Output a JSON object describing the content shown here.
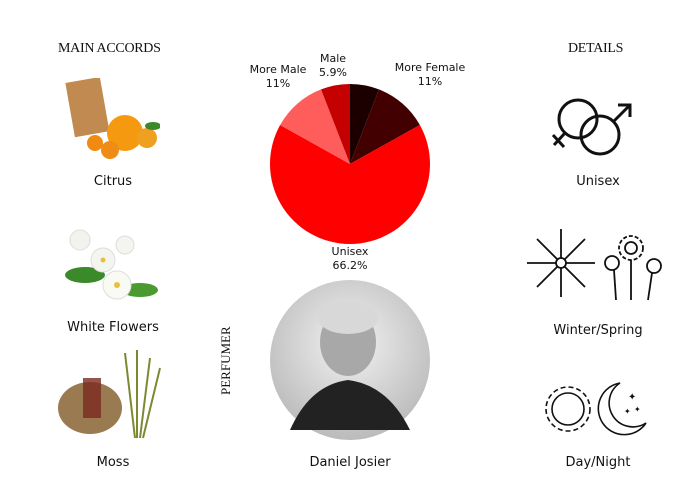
{
  "headers": {
    "accords": "MAIN ACCORDS",
    "details": "DETAILS",
    "perfumer_label": "PERFUMER"
  },
  "accords": [
    {
      "label": "Citrus",
      "icon": "citrus-fruits-image"
    },
    {
      "label": "White Flowers",
      "icon": "white-flowers-image"
    },
    {
      "label": "Moss",
      "icon": "moss-image"
    }
  ],
  "details": [
    {
      "label": "Unisex",
      "icon": "gender-symbols-icon"
    },
    {
      "label": "Winter/Spring",
      "icon": "snowflake-flowers-icon"
    },
    {
      "label": "Day/Night",
      "icon": "sun-moon-icon"
    }
  ],
  "perfumer": {
    "name": "Daniel Josier"
  },
  "chart_data": {
    "type": "pie",
    "slices": [
      {
        "label": "",
        "value": 5.9,
        "color": "#1c0000"
      },
      {
        "label": "More Female",
        "value": 11,
        "value_label": "11%",
        "color": "#420000"
      },
      {
        "label": "Unisex",
        "value": 66.2,
        "value_label": "66.2%",
        "color": "#ff0000"
      },
      {
        "label": "More Male",
        "value": 11,
        "value_label": "11%",
        "color": "#ff5c5c"
      },
      {
        "label": "Male",
        "value": 5.9,
        "value_label": "5.9%",
        "color": "#c40000"
      }
    ]
  }
}
